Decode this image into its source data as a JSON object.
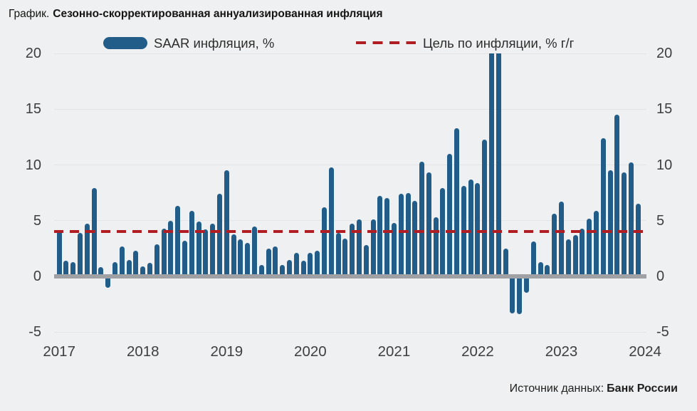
{
  "title": {
    "prefix": "График.",
    "main": "Сезонно-скорректированная аннуализированная инфляция"
  },
  "legend": {
    "bars_label": "SAAR инфляция, %",
    "target_label": "Цель по инфляции, % г/г"
  },
  "source": {
    "prefix": "Источник данных:",
    "name": "Банк России"
  },
  "colors": {
    "bar": "#215d88",
    "target_line": "#b01e23",
    "zero_axis": "#9fa1a4",
    "gridline": "#e2e4e6",
    "background": "#eff0f1"
  },
  "chart_data": {
    "type": "bar",
    "title": "Сезонно-скорректированная аннуализированная инфляция",
    "unit": "%",
    "frequency": "monthly",
    "start_month": "2017-01",
    "end_month": "2023-12",
    "series": [
      {
        "name": "SAAR инфляция, %",
        "values": [
          4.1,
          1.4,
          1.3,
          3.9,
          4.7,
          7.9,
          0.8,
          -1.0,
          1.3,
          2.7,
          1.5,
          2.3,
          0.9,
          1.2,
          2.9,
          4.3,
          5.0,
          6.3,
          3.2,
          5.9,
          4.9,
          4.2,
          4.7,
          7.4,
          9.5,
          3.8,
          3.3,
          3.0,
          4.5,
          1.0,
          2.5,
          2.7,
          1.0,
          1.5,
          2.1,
          1.4,
          2.1,
          2.3,
          6.2,
          9.8,
          3.9,
          3.4,
          4.7,
          5.1,
          2.8,
          5.1,
          7.2,
          7.0,
          4.8,
          7.4,
          7.5,
          6.8,
          10.3,
          9.3,
          5.3,
          7.9,
          11.0,
          13.3,
          8.1,
          8.7,
          8.4,
          12.3,
          20.0,
          20.0,
          2.5,
          -3.3,
          -3.4,
          -1.5,
          3.1,
          1.3,
          1.0,
          5.6,
          6.7,
          3.3,
          3.7,
          4.3,
          5.2,
          5.9,
          12.4,
          9.5,
          14.5,
          9.3,
          10.2,
          6.5
        ]
      }
    ],
    "target_line": {
      "label": "Цель по инфляции, % г/г",
      "value": 4
    },
    "x_tick_labels": [
      "2017",
      "2018",
      "2019",
      "2020",
      "2021",
      "2022",
      "2023",
      "2024"
    ],
    "y_ticks": [
      20,
      15,
      10,
      5,
      0,
      -5
    ],
    "ylim": [
      -5,
      20
    ],
    "grid": "horizontal",
    "legend_position": "top",
    "note": "Bars for 2022-03 and 2022-04 are clipped at the plot top (values reach the 20% axis limit)."
  }
}
